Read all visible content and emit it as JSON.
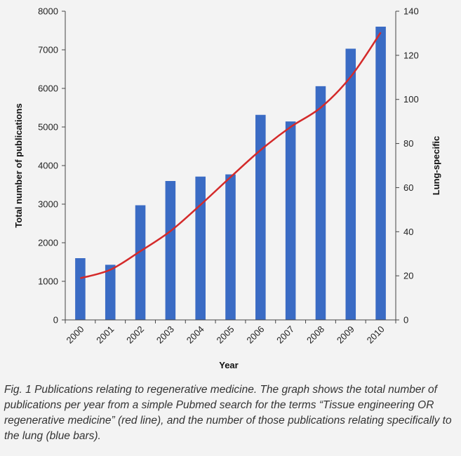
{
  "chart_data": {
    "type": "bar",
    "categories": [
      "2000",
      "2001",
      "2002",
      "2003",
      "2004",
      "2005",
      "2006",
      "2007",
      "2008",
      "2009",
      "2010"
    ],
    "series": [
      {
        "axis": "right",
        "type": "bar",
        "color": "#3a6bc4",
        "values": [
          28,
          25,
          52,
          63,
          65,
          66,
          93,
          90,
          106,
          123,
          133
        ]
      },
      {
        "axis": "left",
        "type": "line",
        "color": "#d42a2a",
        "values": [
          1080,
          1300,
          1780,
          2300,
          2980,
          3700,
          4400,
          5000,
          5500,
          6300,
          7450
        ]
      }
    ],
    "xlabel": "Year",
    "ylabel_left": "Total number of publications",
    "ylabel_right": "Lung-specific",
    "ylim_left": [
      0,
      8000
    ],
    "ylim_right": [
      0,
      140
    ],
    "yticks_left": [
      "0",
      "1000",
      "2000",
      "3000",
      "4000",
      "5000",
      "6000",
      "7000",
      "8000"
    ],
    "yticks_right": [
      "0",
      "20",
      "40",
      "60",
      "80",
      "100",
      "120",
      "140"
    ],
    "grid": false,
    "legend": "none"
  },
  "caption": "Fig. 1 Publications relating to regenerative medicine. The graph shows the total number of publications per year from a simple Pubmed search for the terms “Tissue engineering OR regenerative medicine” (red line), and the number of those publications relating specifically to the lung (blue bars)."
}
